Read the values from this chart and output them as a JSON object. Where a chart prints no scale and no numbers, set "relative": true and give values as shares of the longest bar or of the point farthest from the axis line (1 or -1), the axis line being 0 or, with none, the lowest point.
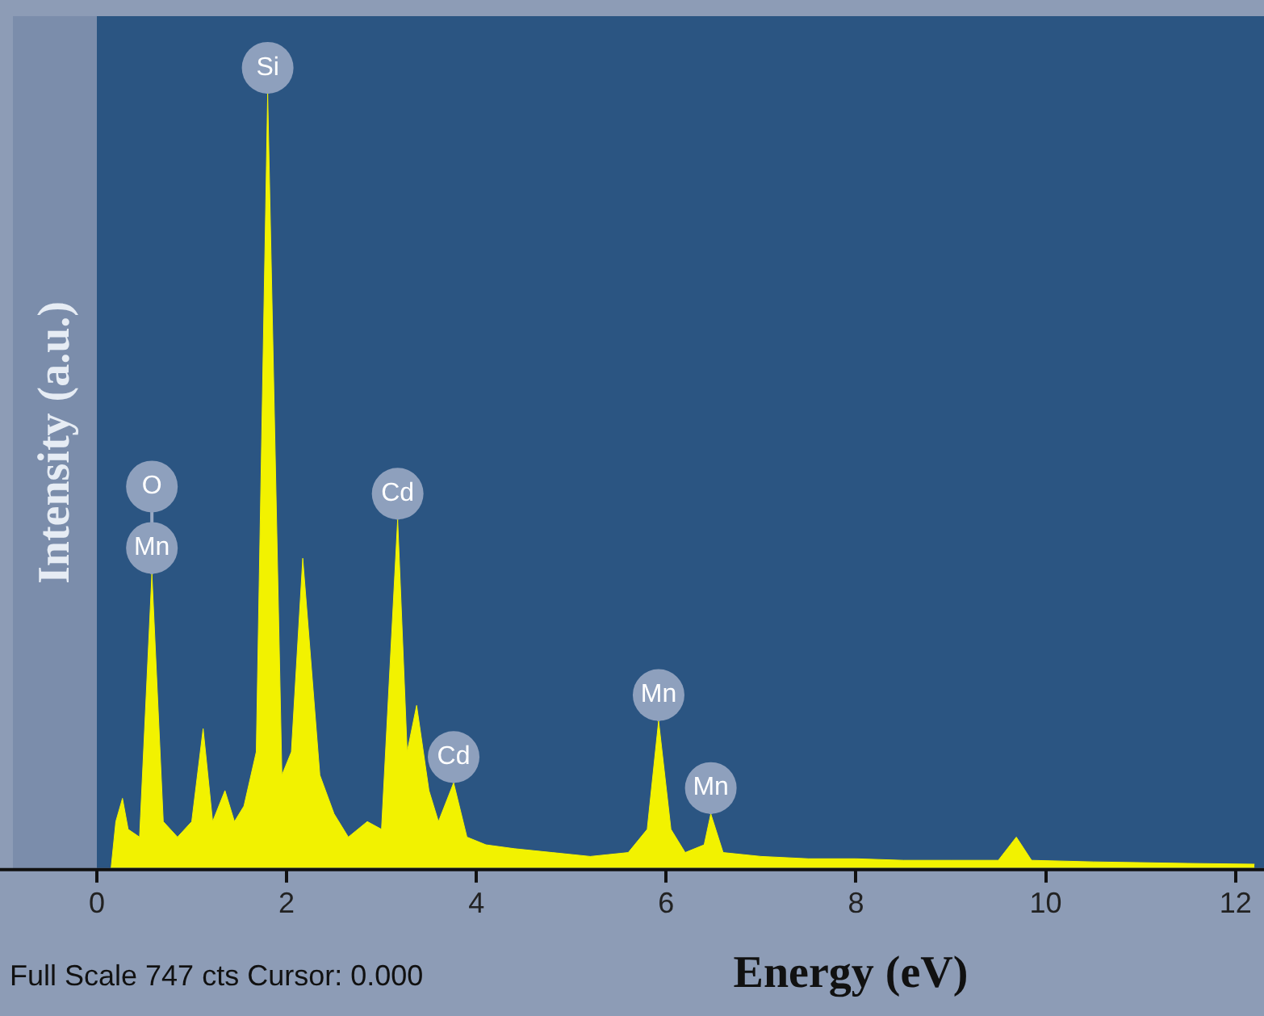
{
  "chart_data": {
    "type": "area",
    "relative": true,
    "xlabel": "Energy (eV)",
    "ylabel": "Intensity (a.u.)",
    "x": [
      0.15,
      0.2,
      0.27,
      0.33,
      0.45,
      0.58,
      0.7,
      0.85,
      1.0,
      1.12,
      1.22,
      1.35,
      1.45,
      1.55,
      1.68,
      1.8,
      1.95,
      2.05,
      2.17,
      2.35,
      2.5,
      2.65,
      2.85,
      3.0,
      3.17,
      3.27,
      3.37,
      3.5,
      3.6,
      3.76,
      3.9,
      4.1,
      4.4,
      4.8,
      5.2,
      5.6,
      5.8,
      5.92,
      6.05,
      6.2,
      6.4,
      6.47,
      6.6,
      7.0,
      7.5,
      8.0,
      8.5,
      9.0,
      9.5,
      9.69,
      9.85,
      10.5,
      11.0,
      11.5,
      12.2
    ],
    "series": [
      {
        "color": "#f2f200",
        "values": [
          0.0,
          0.06,
          0.09,
          0.05,
          0.04,
          0.38,
          0.06,
          0.04,
          0.06,
          0.18,
          0.06,
          0.1,
          0.06,
          0.08,
          0.15,
          1.0,
          0.12,
          0.15,
          0.4,
          0.12,
          0.07,
          0.04,
          0.06,
          0.05,
          0.45,
          0.15,
          0.21,
          0.1,
          0.06,
          0.11,
          0.04,
          0.03,
          0.025,
          0.02,
          0.015,
          0.02,
          0.05,
          0.19,
          0.05,
          0.02,
          0.03,
          0.07,
          0.02,
          0.015,
          0.012,
          0.012,
          0.01,
          0.01,
          0.01,
          0.04,
          0.01,
          0.008,
          0.007,
          0.006,
          0.005
        ]
      }
    ],
    "xlim": [
      0,
      12.3
    ],
    "xticks": [
      0,
      2,
      4,
      6,
      8,
      10,
      12
    ],
    "grid": false,
    "legend": false,
    "annotations": [
      {
        "text": "Si",
        "x": 1.8,
        "y": 1.0
      },
      {
        "text": "Mn",
        "x": 0.58,
        "y": 0.38
      },
      {
        "text": "O",
        "x": 0.58,
        "y": 0.38
      },
      {
        "text": "Cd",
        "x": 3.17,
        "y": 0.45
      },
      {
        "text": "Cd",
        "x": 3.76,
        "y": 0.11
      },
      {
        "text": "Mn",
        "x": 5.92,
        "y": 0.19
      },
      {
        "text": "Mn",
        "x": 6.47,
        "y": 0.07
      },
      "Full Scale 747 cts Cursor: 0.000"
    ]
  }
}
